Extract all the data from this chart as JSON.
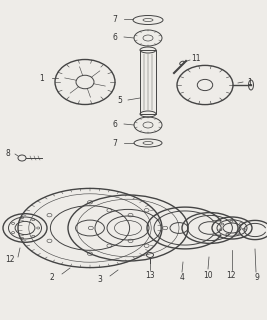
{
  "bg_color": "#eeece8",
  "line_color": "#444444",
  "fig_w": 2.67,
  "fig_h": 3.2,
  "dpi": 100
}
